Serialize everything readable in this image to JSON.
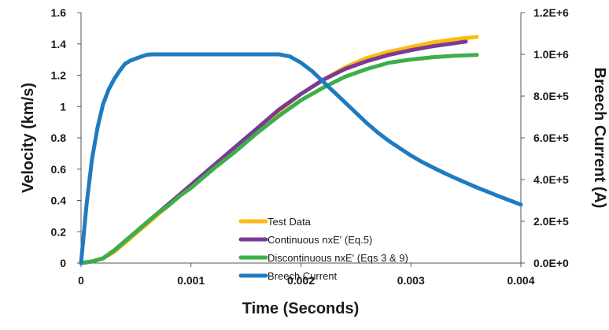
{
  "chart_data": {
    "type": "line",
    "xlabel": "Time (Seconds)",
    "ylabel_left": "Velocity (km/s)",
    "ylabel_right": "Breech Current (A)",
    "xlim": [
      0,
      0.004
    ],
    "ylim_left": [
      0,
      1.6
    ],
    "ylim_right": [
      0,
      1200000
    ],
    "x_ticks": [
      "0",
      "0.001",
      "0.002",
      "0.003",
      "0.004"
    ],
    "y_left_ticks": [
      "0",
      "0.2",
      "0.4",
      "0.6",
      "0.8",
      "1",
      "1.2",
      "1.4",
      "1.6"
    ],
    "y_right_ticks": [
      "0.0E+0",
      "2.0E+5",
      "4.0E+5",
      "6.0E+5",
      "8.0E+5",
      "1.0E+6",
      "1.2E+6"
    ],
    "grid": false,
    "legend_position": "center",
    "series": [
      {
        "name": "Test Data",
        "axis": "left",
        "color": "#FDBA12",
        "x": [
          0,
          0.0001,
          0.0002,
          0.0003,
          0.0004,
          0.0005,
          0.0006,
          0.0007,
          0.0008,
          0.0009,
          0.001,
          0.0012,
          0.0014,
          0.0016,
          0.0018,
          0.002,
          0.0022,
          0.0024,
          0.0026,
          0.0028,
          0.003,
          0.0032,
          0.0034,
          0.0036
        ],
        "y": [
          0,
          0.01,
          0.03,
          0.07,
          0.13,
          0.19,
          0.25,
          0.31,
          0.37,
          0.43,
          0.49,
          0.61,
          0.73,
          0.85,
          0.97,
          1.08,
          1.17,
          1.25,
          1.31,
          1.35,
          1.38,
          1.41,
          1.43,
          1.445
        ]
      },
      {
        "name": "Continuous nxE' (Eq.5)",
        "axis": "left",
        "color": "#7B3A96",
        "x": [
          0,
          0.0001,
          0.0002,
          0.0003,
          0.0004,
          0.0005,
          0.0006,
          0.0007,
          0.0008,
          0.0009,
          0.001,
          0.0012,
          0.0014,
          0.0016,
          0.0018,
          0.002,
          0.0022,
          0.0024,
          0.0026,
          0.0028,
          0.003,
          0.0032,
          0.0034,
          0.0035
        ],
        "y": [
          0,
          0.01,
          0.03,
          0.08,
          0.14,
          0.2,
          0.26,
          0.32,
          0.38,
          0.44,
          0.5,
          0.62,
          0.74,
          0.86,
          0.98,
          1.08,
          1.17,
          1.24,
          1.29,
          1.33,
          1.36,
          1.385,
          1.405,
          1.415
        ]
      },
      {
        "name": "Discontinuous nxE' (Eqs 3 & 9)",
        "axis": "left",
        "color": "#3DAE4A",
        "x": [
          0,
          0.0001,
          0.0002,
          0.0003,
          0.0004,
          0.0005,
          0.0006,
          0.0007,
          0.0008,
          0.0009,
          0.001,
          0.0012,
          0.0014,
          0.0016,
          0.0018,
          0.002,
          0.0022,
          0.0024,
          0.0026,
          0.0028,
          0.003,
          0.0032,
          0.0034,
          0.0036
        ],
        "y": [
          0,
          0.01,
          0.03,
          0.08,
          0.14,
          0.2,
          0.26,
          0.32,
          0.37,
          0.43,
          0.48,
          0.6,
          0.71,
          0.83,
          0.94,
          1.04,
          1.12,
          1.19,
          1.24,
          1.28,
          1.3,
          1.315,
          1.325,
          1.33
        ]
      },
      {
        "name": "Breech Current",
        "axis": "right",
        "color": "#1F7BC0",
        "x": [
          0,
          5e-05,
          0.0001,
          0.00015,
          0.0002,
          0.00025,
          0.0003,
          0.00035,
          0.0004,
          0.00045,
          0.0005,
          0.00055,
          0.0006,
          0.00065,
          0.0007,
          0.0018,
          0.0019,
          0.002,
          0.0021,
          0.0022,
          0.0023,
          0.0024,
          0.0025,
          0.0026,
          0.0027,
          0.0028,
          0.0029,
          0.003,
          0.0031,
          0.0032,
          0.0033,
          0.0034,
          0.0035,
          0.0036,
          0.0037,
          0.0038,
          0.0039,
          0.004
        ],
        "y": [
          0,
          280000,
          500000,
          650000,
          760000,
          830000,
          880000,
          920000,
          955000,
          970000,
          980000,
          990000,
          998000,
          1000000,
          1000000,
          1000000,
          990000,
          960000,
          920000,
          870000,
          820000,
          770000,
          720000,
          670000,
          625000,
          585000,
          550000,
          515000,
          485000,
          458000,
          432000,
          408000,
          385000,
          362000,
          341000,
          320000,
          300000,
          280000
        ]
      }
    ]
  }
}
